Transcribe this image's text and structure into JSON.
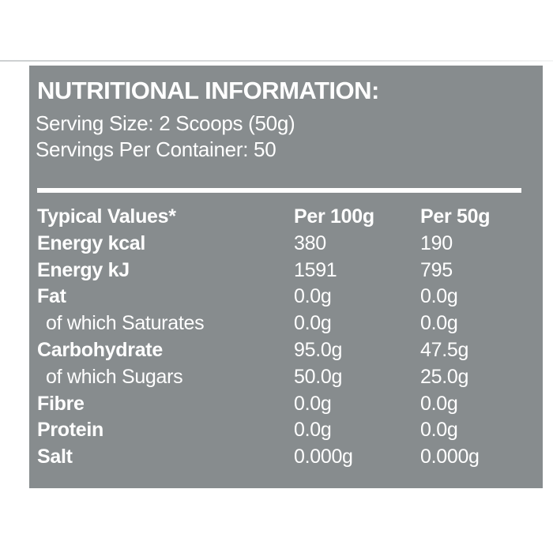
{
  "panel": {
    "bg_color": "#878C8E",
    "text_color": "#FFFFFF",
    "divider_color": "#FFFFFF",
    "title": "NUTRITIONAL INFORMATION:",
    "serving_size": "Serving Size: 2 Scoops (50g)",
    "servings_per_container": "Servings Per Container: 50"
  },
  "table": {
    "columns": [
      "Typical Values*",
      "Per 100g",
      "Per 50g"
    ],
    "rows": [
      {
        "label": "Energy kcal",
        "per100g": "380",
        "per50g": "190",
        "bold": true,
        "indent": false
      },
      {
        "label": "Energy kJ",
        "per100g": "1591",
        "per50g": "795",
        "bold": true,
        "indent": false
      },
      {
        "label": "Fat",
        "per100g": "0.0g",
        "per50g": "0.0g",
        "bold": true,
        "indent": false
      },
      {
        "label": "of which Saturates",
        "per100g": "0.0g",
        "per50g": "0.0g",
        "bold": false,
        "indent": true
      },
      {
        "label": "Carbohydrate",
        "per100g": "95.0g",
        "per50g": "47.5g",
        "bold": true,
        "indent": false
      },
      {
        "label": "of which Sugars",
        "per100g": "50.0g",
        "per50g": "25.0g",
        "bold": false,
        "indent": true
      },
      {
        "label": "Fibre",
        "per100g": "0.0g",
        "per50g": "0.0g",
        "bold": true,
        "indent": false
      },
      {
        "label": "Protein",
        "per100g": "0.0g",
        "per50g": "0.0g",
        "bold": true,
        "indent": false
      },
      {
        "label": "Salt",
        "per100g": "0.000g",
        "per50g": "0.000g",
        "bold": true,
        "indent": false
      }
    ]
  }
}
